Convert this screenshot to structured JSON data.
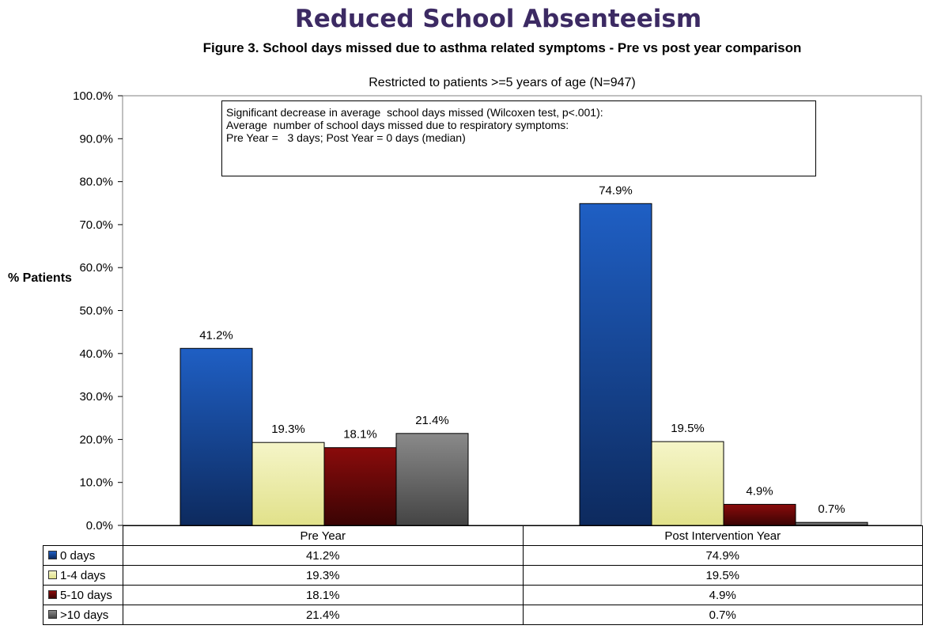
{
  "header": {
    "main_title": "Reduced School Absenteeism",
    "figure_title": "Figure 3. School days missed due to asthma related symptoms - Pre vs post year comparison",
    "subtitle": "Restricted to patients >=5 years of age (N=947)"
  },
  "annotation": {
    "line1": "Significant decrease in average  school days missed (Wilcoxen test, p<.001):",
    "line2": "Average  number of school days missed due to respiratory symptoms:",
    "line3": "Pre Year =   3 days; Post Year = 0 days (median)"
  },
  "chart_data": {
    "type": "bar",
    "title": "Figure 3. School days missed due to asthma related symptoms - Pre vs post year comparison",
    "subtitle": "Restricted to patients >=5 years of age (N=947)",
    "ylabel": "% Patients",
    "xlabel": "",
    "categories": [
      "Pre Year",
      "Post Intervention Year"
    ],
    "ylim": [
      0,
      100
    ],
    "yticks": [
      "0.0%",
      "10.0%",
      "20.0%",
      "30.0%",
      "40.0%",
      "50.0%",
      "60.0%",
      "70.0%",
      "80.0%",
      "90.0%",
      "100.0%"
    ],
    "series": [
      {
        "name": "0 days",
        "values": [
          41.2,
          74.9
        ],
        "labels": [
          "41.2%",
          "74.9%"
        ],
        "color": "#1f5fc4",
        "color_dark": "#0d2a5e"
      },
      {
        "name": "1-4 days",
        "values": [
          19.3,
          19.5
        ],
        "labels": [
          "19.3%",
          "19.5%"
        ],
        "color": "#f5f5c8",
        "color_dark": "#e1e18a"
      },
      {
        "name": "5-10 days",
        "values": [
          18.1,
          4.9
        ],
        "labels": [
          "18.1%",
          "4.9%"
        ],
        "color": "#8a0b0b",
        "color_dark": "#3a0404"
      },
      {
        "name": ">10 days",
        "values": [
          21.4,
          0.7
        ],
        "labels": [
          "21.4%",
          "0.7%"
        ],
        "color": "#8a8a8a",
        "color_dark": "#444444"
      }
    ],
    "legend": "data-table-below",
    "grid": false
  }
}
